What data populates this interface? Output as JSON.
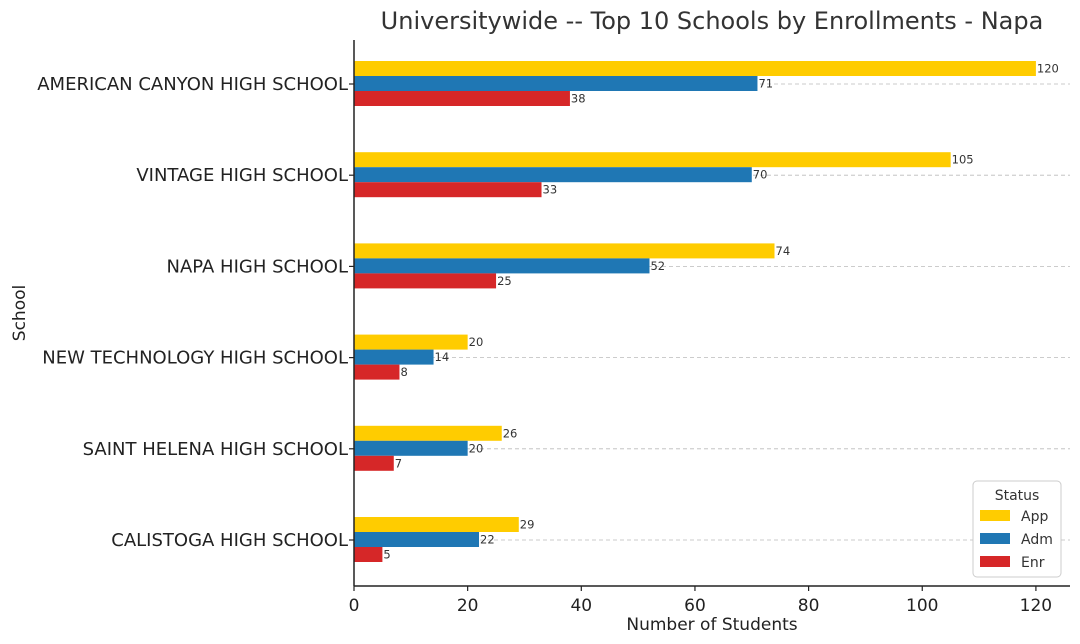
{
  "chart_data": {
    "type": "bar",
    "orientation": "horizontal",
    "title": "Universitywide -- Top 10 Schools by Enrollments - Napa",
    "xlabel": "Number of Students",
    "ylabel": "School",
    "categories": [
      "AMERICAN CANYON HIGH SCHOOL",
      "VINTAGE HIGH SCHOOL",
      "NAPA HIGH SCHOOL",
      "NEW TECHNOLOGY HIGH SCHOOL",
      "SAINT HELENA HIGH SCHOOL",
      "CALISTOGA HIGH SCHOOL"
    ],
    "series": [
      {
        "name": "App",
        "color": "#FFCC00",
        "values": [
          120,
          105,
          74,
          20,
          26,
          29
        ]
      },
      {
        "name": "Adm",
        "color": "#1F77B4",
        "values": [
          71,
          70,
          52,
          14,
          20,
          22
        ]
      },
      {
        "name": "Enr",
        "color": "#D62728",
        "values": [
          38,
          33,
          25,
          8,
          7,
          5
        ]
      }
    ],
    "xlim": [
      0,
      126
    ],
    "xticks": [
      0,
      20,
      40,
      60,
      80,
      100,
      120
    ],
    "grid": "horizontal dashed",
    "legend": {
      "title": "Status",
      "placement": "lower-right"
    }
  }
}
